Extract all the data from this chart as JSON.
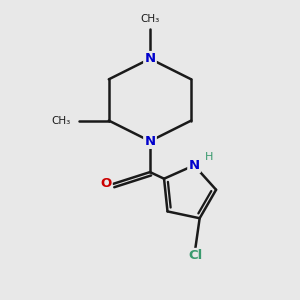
{
  "background_color": "#e8e8e8",
  "bond_color": "#1a1a1a",
  "N_color": "#0000cc",
  "O_color": "#cc0000",
  "Cl_color": "#3a9a6e",
  "H_color": "#3a9a6e",
  "line_width": 1.8,
  "figsize": [
    3.0,
    3.0
  ],
  "dpi": 100,
  "xlim": [
    0,
    10
  ],
  "ylim": [
    0,
    10
  ]
}
